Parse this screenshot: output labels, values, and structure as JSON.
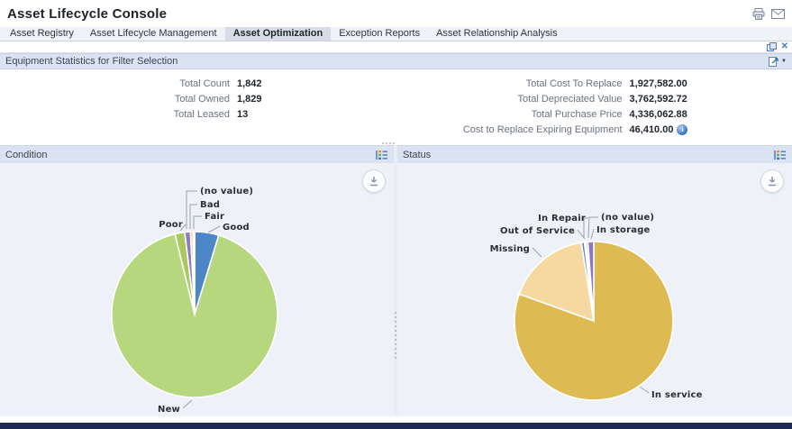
{
  "window": {
    "title": "Asset Lifecycle Console"
  },
  "titlebar_icons": [
    "print-icon",
    "email-icon"
  ],
  "tabs": [
    {
      "label": "Asset Registry",
      "active": false
    },
    {
      "label": "Asset Lifecycle Management",
      "active": false
    },
    {
      "label": "Asset Optimization",
      "active": true
    },
    {
      "label": "Exception Reports",
      "active": false
    },
    {
      "label": "Asset Relationship Analysis",
      "active": false
    }
  ],
  "toolbar_icons": [
    "detach-window-icon",
    "close-icon"
  ],
  "stats": {
    "title": "Equipment Statistics for Filter Selection",
    "left": [
      {
        "label": "Total Count",
        "value": "1,842"
      },
      {
        "label": "Total Owned",
        "value": "1,829"
      },
      {
        "label": "Total Leased",
        "value": "13"
      }
    ],
    "right": [
      {
        "label": "Total Cost To Replace",
        "value": "1,927,582.00"
      },
      {
        "label": "Total Depreciated Value",
        "value": "3,762,592.72"
      },
      {
        "label": "Total Purchase Price",
        "value": "4,336,062.88"
      },
      {
        "label": "Cost to Replace Expiring Equipment",
        "value": "46,410.00",
        "info": true
      }
    ]
  },
  "panels": [
    {
      "title": "Condition"
    },
    {
      "title": "Status"
    }
  ],
  "chart_data": [
    {
      "type": "pie",
      "title": "Condition",
      "legend_position": "callout-labels",
      "slices": [
        {
          "label": "Good",
          "pct": 4.7,
          "color": "#4d87c7"
        },
        {
          "label": "New",
          "pct": 91.5,
          "color": "#b6d77d"
        },
        {
          "label": "Poor",
          "pct": 1.9,
          "color": "#a9c95f"
        },
        {
          "label": "(no value)",
          "pct": 1.1,
          "color": "#8f7bbf"
        },
        {
          "label": "Bad",
          "pct": 0.5,
          "color": "#f2c871"
        },
        {
          "label": "Fair",
          "pct": 0.3,
          "color": "#e39b9e"
        }
      ]
    },
    {
      "type": "pie",
      "title": "Status",
      "legend_position": "callout-labels",
      "slices": [
        {
          "label": "In service",
          "pct": 80.5,
          "color": "#deba52"
        },
        {
          "label": "Missing",
          "pct": 17.0,
          "color": "#f6d9a0"
        },
        {
          "label": "In Repair",
          "pct": 0.6,
          "color": "#4d87c7"
        },
        {
          "label": "Out of Service",
          "pct": 0.3,
          "color": "#bcd0ea"
        },
        {
          "label": "(no value)",
          "pct": 0.4,
          "color": "#b3a3d9"
        },
        {
          "label": "In storage",
          "pct": 1.2,
          "color": "#8d78bd"
        }
      ]
    }
  ],
  "colors": {
    "section_header_bg": "#dbe2f2",
    "selected_tab_bg": "#d8dce6",
    "chart_bg": "#eef2f8",
    "bottom_bar": "#1a2a52",
    "accent_blue": "#4a7ac0"
  }
}
